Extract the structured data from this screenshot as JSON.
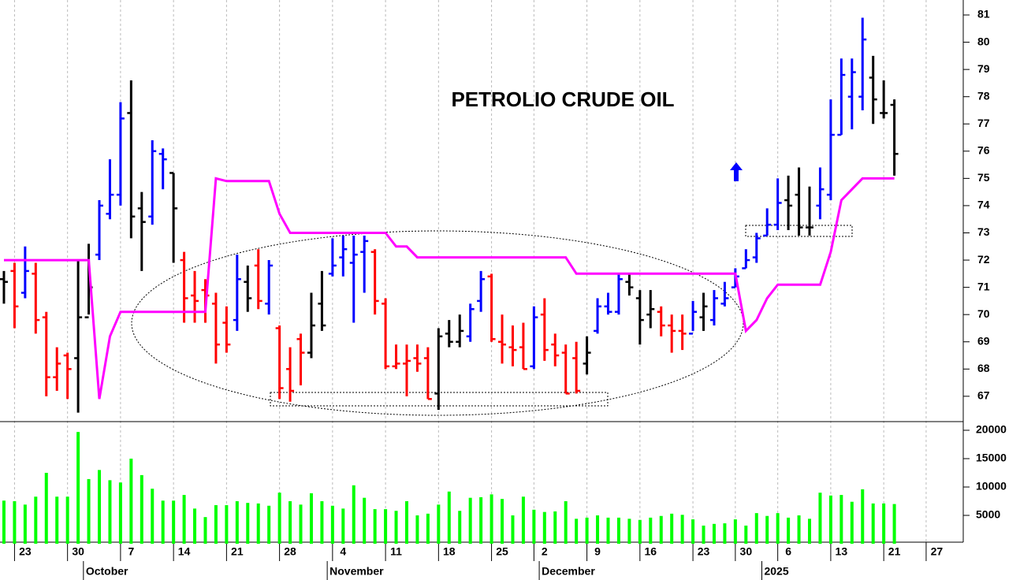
{
  "chart_data": [
    {
      "type": "ohlc",
      "title": "PETROLIO CRUDE OIL",
      "open": [
        71.3,
        71.6,
        70.8,
        71.5,
        69.9,
        67.7,
        68.5,
        68.4,
        69.9,
        72.2,
        73.7,
        74.4,
        77.4,
        73.9,
        73.6,
        75.9,
        75.2,
        72.0,
        70.7,
        70.9,
        70.4,
        69.7,
        69.8,
        71.2,
        71.8,
        70.4,
        69.5,
        68.0,
        69.1,
        68.6,
        70.4,
        71.5,
        72.1,
        71.9,
        72.3,
        72.3,
        70.4,
        68.1,
        68.2,
        68.4,
        68.4,
        67.1,
        69.3,
        69.0,
        69.2,
        70.5,
        71.4,
        69.0,
        68.8,
        68.8,
        68.1,
        70.0,
        68.9,
        68.6,
        68.4,
        68.2,
        69.4,
        70.3,
        70.1,
        71.2,
        70.6,
        70.0,
        70.1,
        69.6,
        69.4,
        69.3,
        69.9,
        69.8,
        70.4,
        71.0,
        71.7,
        72.1,
        72.9,
        73.3,
        74.2,
        74.4,
        73.2,
        74.0,
        74.4,
        76.6,
        78.0,
        78.0,
        78.7,
        77.4,
        77.7
      ],
      "high": [
        71.6,
        71.9,
        72.5,
        71.9,
        70.1,
        68.8,
        68.6,
        72.0,
        72.6,
        74.2,
        75.7,
        77.8,
        78.6,
        74.5,
        76.4,
        76.1,
        75.2,
        72.3,
        71.6,
        71.3,
        70.8,
        70.3,
        72.2,
        71.8,
        72.4,
        72.0,
        69.6,
        68.8,
        69.3,
        70.8,
        71.6,
        72.8,
        72.9,
        72.9,
        72.9,
        72.4,
        70.6,
        68.9,
        68.9,
        68.9,
        68.8,
        69.5,
        69.8,
        70.0,
        70.4,
        71.6,
        71.5,
        70.0,
        69.6,
        69.7,
        70.3,
        70.6,
        69.3,
        68.9,
        69.0,
        69.2,
        70.6,
        70.8,
        71.5,
        71.5,
        70.9,
        70.9,
        70.3,
        70.0,
        70.0,
        70.5,
        70.8,
        70.9,
        71.2,
        71.7,
        72.4,
        73.0,
        73.9,
        75.0,
        75.1,
        75.4,
        74.7,
        75.4,
        77.9,
        79.4,
        79.4,
        80.9,
        79.5,
        78.6,
        77.9
      ],
      "low": [
        70.4,
        69.5,
        70.6,
        69.3,
        67.0,
        67.2,
        66.9,
        66.4,
        70.0,
        72.0,
        73.5,
        74.0,
        72.8,
        71.6,
        73.3,
        74.6,
        71.9,
        69.7,
        69.7,
        69.7,
        68.2,
        68.6,
        69.4,
        70.1,
        70.2,
        70.0,
        66.9,
        66.8,
        67.4,
        68.4,
        69.4,
        71.4,
        71.4,
        69.7,
        70.8,
        70.0,
        68.0,
        68.0,
        67.0,
        67.9,
        66.9,
        66.5,
        68.8,
        68.8,
        69.0,
        70.1,
        69.0,
        68.2,
        68.1,
        68.0,
        68.0,
        68.3,
        68.1,
        67.1,
        67.1,
        67.8,
        69.3,
        70.0,
        70.0,
        70.7,
        68.9,
        69.5,
        69.2,
        68.6,
        68.7,
        69.4,
        69.4,
        69.6,
        70.3,
        71.0,
        71.7,
        71.9,
        72.9,
        73.1,
        73.1,
        72.9,
        72.9,
        73.5,
        74.2,
        76.6,
        76.8,
        77.5,
        77.0,
        77.2,
        75.1
      ],
      "close": [
        71.2,
        70.3,
        71.6,
        69.8,
        67.7,
        68.2,
        68.0,
        69.9,
        71.0,
        74.0,
        74.4,
        77.2,
        73.6,
        73.4,
        76.0,
        75.7,
        73.9,
        70.6,
        70.5,
        70.7,
        68.9,
        68.9,
        71.3,
        70.6,
        70.5,
        71.8,
        67.3,
        67.2,
        68.6,
        69.6,
        69.6,
        71.8,
        72.4,
        72.2,
        72.7,
        70.5,
        68.1,
        68.2,
        68.3,
        68.2,
        66.9,
        69.2,
        69.0,
        69.4,
        70.2,
        71.3,
        69.1,
        68.9,
        68.7,
        68.0,
        69.9,
        68.7,
        68.5,
        67.1,
        67.2,
        68.6,
        70.3,
        70.1,
        71.3,
        71.0,
        69.8,
        70.2,
        69.6,
        69.4,
        69.3,
        70.1,
        70.3,
        70.6,
        70.6,
        71.4,
        72.0,
        72.8,
        73.3,
        74.1,
        74.0,
        73.2,
        73.2,
        74.6,
        76.6,
        78.8,
        78.9,
        80.1,
        77.9,
        77.4,
        75.9
      ],
      "bar_colors": [
        "#000000",
        "#ff0000",
        "#0000ff",
        "#ff0000",
        "#ff0000",
        "#ff0000",
        "#ff0000",
        "#000000",
        "#000000",
        "#0000ff",
        "#0000ff",
        "#0000ff",
        "#000000",
        "#000000",
        "#0000ff",
        "#0000ff",
        "#000000",
        "#ff0000",
        "#ff0000",
        "#ff0000",
        "#ff0000",
        "#ff0000",
        "#0000ff",
        "#000000",
        "#ff0000",
        "#0000ff",
        "#ff0000",
        "#ff0000",
        "#ff0000",
        "#000000",
        "#000000",
        "#0000ff",
        "#0000ff",
        "#0000ff",
        "#0000ff",
        "#ff0000",
        "#ff0000",
        "#ff0000",
        "#ff0000",
        "#ff0000",
        "#ff0000",
        "#000000",
        "#000000",
        "#000000",
        "#0000ff",
        "#0000ff",
        "#ff0000",
        "#ff0000",
        "#ff0000",
        "#ff0000",
        "#0000ff",
        "#ff0000",
        "#ff0000",
        "#ff0000",
        "#ff0000",
        "#000000",
        "#0000ff",
        "#0000ff",
        "#0000ff",
        "#000000",
        "#000000",
        "#000000",
        "#ff0000",
        "#ff0000",
        "#ff0000",
        "#0000ff",
        "#000000",
        "#0000ff",
        "#0000ff",
        "#0000ff",
        "#0000ff",
        "#0000ff",
        "#0000ff",
        "#0000ff",
        "#000000",
        "#000000",
        "#000000",
        "#0000ff",
        "#0000ff",
        "#0000ff",
        "#0000ff",
        "#0000ff",
        "#000000",
        "#000000",
        "#000000"
      ],
      "line": {
        "color": "#ff00ff",
        "values": [
          72.0,
          72.0,
          72.0,
          72.0,
          72.0,
          72.0,
          72.0,
          72.0,
          72.0,
          66.9,
          69.2,
          70.1,
          70.1,
          70.1,
          70.1,
          70.1,
          70.1,
          70.1,
          70.1,
          70.1,
          75.0,
          74.9,
          74.9,
          74.9,
          74.9,
          74.9,
          73.7,
          73.0,
          73.0,
          73.0,
          73.0,
          73.0,
          73.0,
          73.0,
          73.0,
          73.0,
          73.0,
          72.5,
          72.5,
          72.1,
          72.1,
          72.1,
          72.1,
          72.1,
          72.1,
          72.1,
          72.1,
          72.1,
          72.1,
          72.1,
          72.1,
          72.1,
          72.1,
          72.1,
          71.5,
          71.5,
          71.5,
          71.5,
          71.5,
          71.5,
          71.5,
          71.5,
          71.5,
          71.5,
          71.5,
          71.5,
          71.5,
          71.5,
          71.5,
          71.5,
          69.4,
          69.8,
          70.6,
          71.1,
          71.1,
          71.1,
          71.1,
          71.1,
          72.3,
          74.2,
          74.6,
          75.0,
          75.0,
          75.0,
          75.0
        ]
      },
      "ylim": [
        66.07,
        81.55
      ],
      "yticks": [
        67,
        68,
        69,
        70,
        71,
        72,
        73,
        74,
        75,
        76,
        77,
        78,
        79,
        80,
        81
      ]
    },
    {
      "type": "bar",
      "color": "#00ff00",
      "values": [
        7600,
        7500,
        6900,
        8300,
        12500,
        8300,
        8300,
        19700,
        11400,
        13000,
        11200,
        10800,
        15000,
        12100,
        9700,
        7600,
        7600,
        8600,
        6200,
        4700,
        6800,
        6800,
        7500,
        7200,
        7100,
        6700,
        9000,
        7500,
        6900,
        8900,
        7500,
        6700,
        6200,
        10300,
        8100,
        6100,
        6100,
        5800,
        7500,
        5000,
        5300,
        6900,
        9200,
        5800,
        8100,
        8200,
        8700,
        7900,
        5000,
        8300,
        6000,
        5600,
        5700,
        7500,
        4400,
        4600,
        5000,
        4600,
        4600,
        4400,
        4200,
        4600,
        4900,
        5300,
        5100,
        4300,
        3200,
        3500,
        3600,
        4300,
        3200,
        5400,
        4900,
        5400,
        4600,
        5000,
        4400,
        9000,
        8500,
        8600,
        7400,
        9600,
        7100,
        7100,
        7000
      ],
      "ylim": [
        0,
        21250
      ],
      "yticks": [
        5000,
        10000,
        15000,
        20000
      ],
      "xlim": [
        -0.37,
        90.5
      ],
      "xticks": [
        {
          "value": 2,
          "label": "23"
        },
        {
          "value": 7,
          "label": "30"
        },
        {
          "value": 12,
          "label": "7"
        },
        {
          "value": 17,
          "label": "14"
        },
        {
          "value": 22,
          "label": "21"
        },
        {
          "value": 27,
          "label": "28"
        },
        {
          "value": 32,
          "label": "4"
        },
        {
          "value": 37,
          "label": "11"
        },
        {
          "value": 42,
          "label": "18"
        },
        {
          "value": 47,
          "label": "25"
        },
        {
          "value": 51,
          "label": "2"
        },
        {
          "value": 56,
          "label": "9"
        },
        {
          "value": 61,
          "label": "16"
        },
        {
          "value": 66,
          "label": "23"
        },
        {
          "value": 70,
          "label": "30"
        },
        {
          "value": 74,
          "label": "6"
        },
        {
          "value": 79,
          "label": "13"
        },
        {
          "value": 84,
          "label": "21"
        },
        {
          "value": 88,
          "label": "27"
        }
      ],
      "month_ticks": [
        {
          "value": 8,
          "label": "October"
        },
        {
          "value": 31,
          "label": "November"
        },
        {
          "value": 51,
          "label": "December"
        },
        {
          "value": 72,
          "label": "2025"
        }
      ]
    }
  ]
}
